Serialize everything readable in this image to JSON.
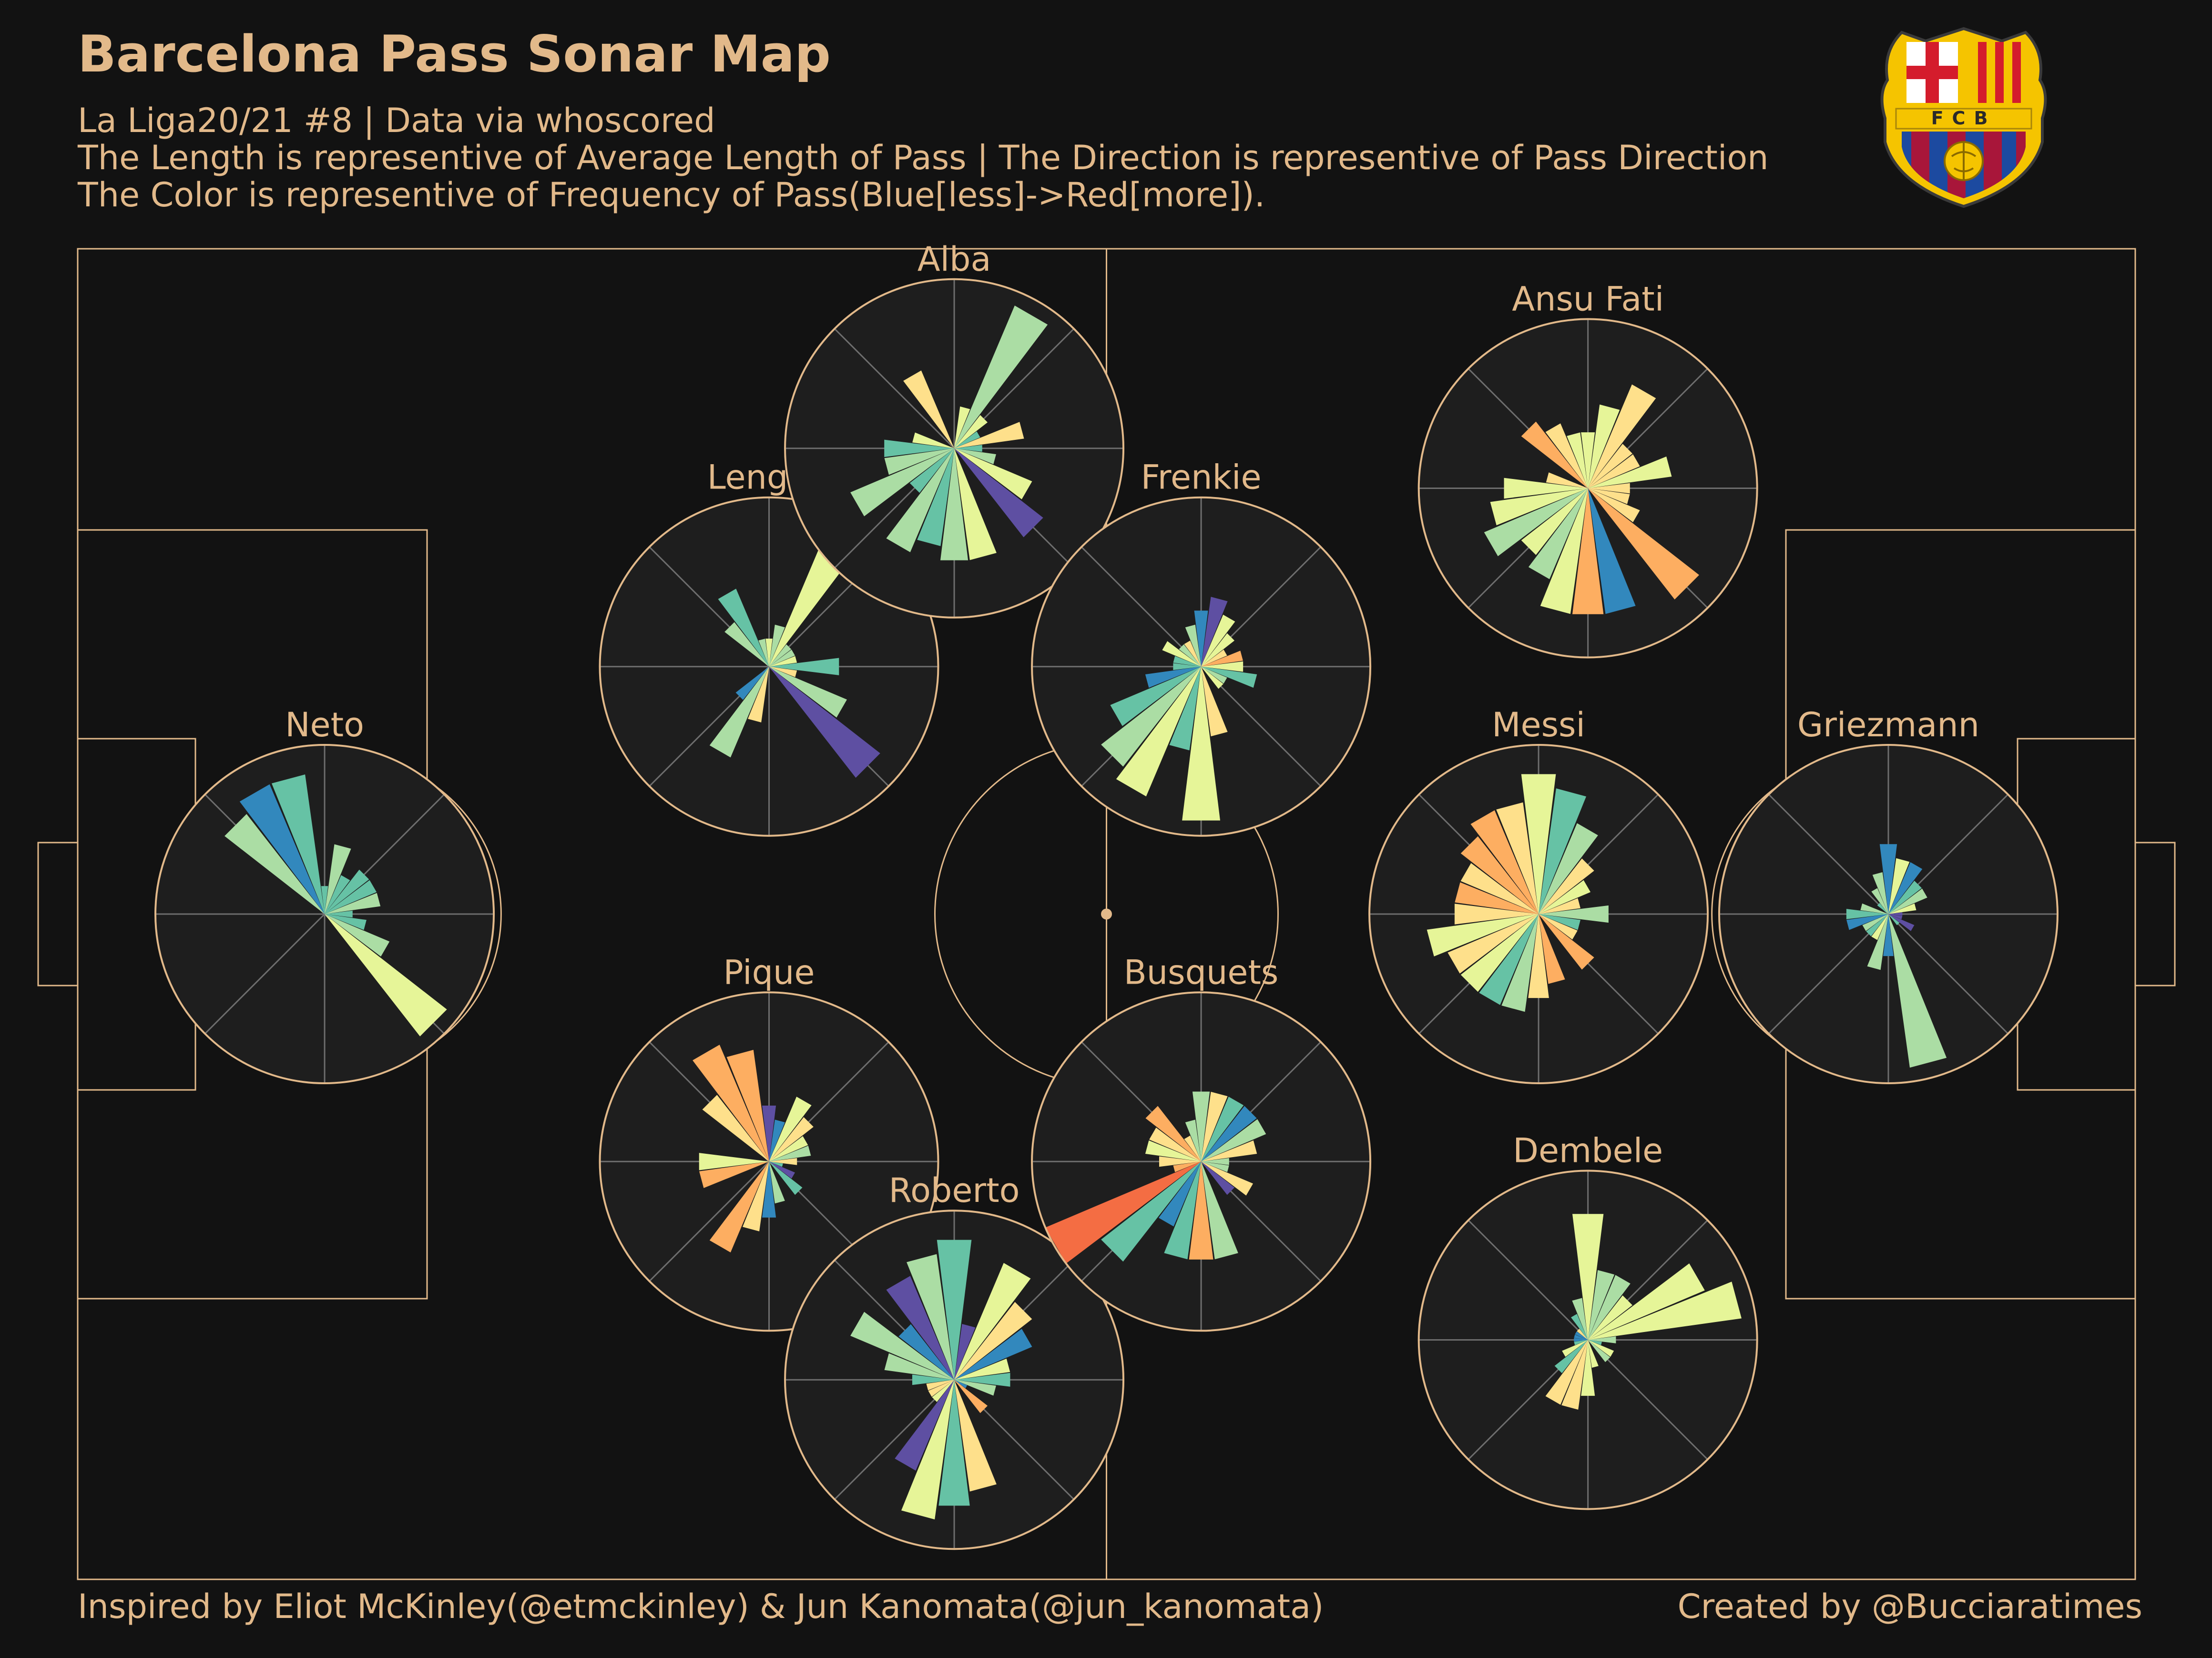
{
  "header": {
    "title": "Barcelona Pass Sonar Map",
    "subtitle_line1": "La Liga20/21 #8 | Data via whoscored",
    "subtitle_line2": "The Length is representive of Average Length of Pass | The Direction is representive of Pass Direction",
    "subtitle_line3": "The Color is representive of Frequency of Pass(Blue[less]->Red[more])."
  },
  "footer": {
    "left": "Inspired by Eliot McKinley(@etmckinley) & Jun Kanomata(@jun_kanomata)",
    "right": "Created by @Bucciaratimes"
  },
  "logo": {
    "text": "FCB"
  },
  "colors": {
    "background": "#121212",
    "pitch_line": "#e2b98a",
    "sonar_face": "#1e1e1e",
    "sonar_grid": "#6e6e6e",
    "text": "#e2b98a"
  },
  "chart_data": {
    "type": "polar-bar",
    "sector_count": 24,
    "color_scale": "Spectral_r (Blue = less frequent, Red = more frequent)",
    "players": [
      {
        "name": "Neto",
        "x": 12.0,
        "y": 50.0,
        "length": [
          2,
          5,
          3,
          4,
          4,
          4,
          2,
          3,
          5,
          11,
          0,
          0,
          0,
          0,
          0,
          0,
          0,
          0,
          0,
          0,
          0,
          9,
          10,
          10
        ],
        "freq": [
          2,
          3,
          2,
          2,
          2,
          3,
          2,
          2,
          3,
          4,
          0,
          0,
          0,
          0,
          0,
          0,
          0,
          0,
          0,
          0,
          0,
          3,
          1,
          2
        ]
      },
      {
        "name": "Lenglet",
        "x": 33.6,
        "y": 31.4,
        "length": [
          2,
          3,
          10,
          2,
          2,
          2,
          5,
          2,
          6,
          10,
          0,
          0,
          0,
          4,
          7,
          3,
          0,
          0,
          0,
          0,
          0,
          4,
          6,
          2
        ],
        "freq": [
          4,
          3,
          4,
          3,
          3,
          4,
          2,
          5,
          3,
          0,
          0,
          0,
          0,
          5,
          3,
          1,
          0,
          0,
          0,
          0,
          0,
          3,
          2,
          3
        ]
      },
      {
        "name": "Alba",
        "x": 42.6,
        "y": 15.0,
        "length": [
          0,
          3,
          11,
          3,
          2,
          5,
          2,
          3,
          6,
          8,
          0,
          8,
          8,
          7,
          8,
          4,
          8,
          5,
          5,
          3,
          0,
          0,
          6,
          0
        ],
        "freq": [
          0,
          4,
          3,
          4,
          2,
          5,
          2,
          3,
          4,
          0,
          0,
          4,
          3,
          2,
          3,
          2,
          3,
          3,
          2,
          4,
          0,
          0,
          5,
          0
        ]
      },
      {
        "name": "Pique",
        "x": 33.6,
        "y": 68.6,
        "length": [
          4,
          3,
          5,
          4,
          3,
          3,
          2,
          1,
          2,
          3,
          0,
          3,
          4,
          5,
          7,
          0,
          0,
          5,
          5,
          0,
          0,
          6,
          9,
          8
        ],
        "freq": [
          0,
          1,
          4,
          5,
          4,
          3,
          5,
          2,
          0,
          2,
          0,
          3,
          1,
          5,
          6,
          0,
          0,
          6,
          4,
          0,
          0,
          5,
          6,
          6
        ]
      },
      {
        "name": "Roberto",
        "x": 42.6,
        "y": 85.0,
        "length": [
          10,
          4,
          9,
          7,
          6,
          4,
          4,
          3,
          1,
          3,
          0,
          8,
          9,
          10,
          7,
          2,
          2,
          2,
          3,
          5,
          8,
          5,
          8,
          9
        ],
        "freq": [
          2,
          0,
          4,
          5,
          1,
          4,
          2,
          3,
          1,
          6,
          0,
          5,
          2,
          4,
          0,
          4,
          5,
          5,
          2,
          3,
          3,
          1,
          0,
          3
        ]
      },
      {
        "name": "Frenkie",
        "x": 54.6,
        "y": 31.4,
        "length": [
          4,
          5,
          4,
          3,
          2,
          3,
          3,
          4,
          2,
          2,
          0,
          5,
          11,
          6,
          10,
          9,
          7,
          4,
          2,
          2,
          3,
          2,
          2,
          3
        ],
        "freq": [
          1,
          0,
          4,
          4,
          5,
          6,
          4,
          2,
          3,
          4,
          0,
          5,
          4,
          2,
          4,
          3,
          2,
          1,
          2,
          2,
          4,
          3,
          5,
          3
        ]
      },
      {
        "name": "Busquets",
        "x": 54.6,
        "y": 68.6,
        "length": [
          5,
          5,
          5,
          5,
          5,
          4,
          2,
          2,
          4,
          3,
          0,
          7,
          7,
          7,
          5,
          9,
          12,
          2,
          3,
          4,
          4,
          5,
          2,
          3
        ],
        "freq": [
          3,
          5,
          2,
          1,
          3,
          5,
          3,
          3,
          5,
          0,
          0,
          3,
          6,
          2,
          1,
          2,
          7,
          6,
          5,
          4,
          5,
          6,
          5,
          3
        ]
      },
      {
        "name": "Ansu Fati",
        "x": 73.4,
        "y": 18.0,
        "length": [
          4,
          6,
          8,
          4,
          4,
          6,
          3,
          3,
          4,
          10,
          0,
          9,
          9,
          9,
          7,
          6,
          8,
          7,
          6,
          3,
          0,
          6,
          5,
          4
        ],
        "freq": [
          4,
          4,
          5,
          5,
          5,
          4,
          5,
          5,
          5,
          6,
          0,
          1,
          6,
          4,
          3,
          4,
          3,
          4,
          4,
          5,
          0,
          6,
          5,
          4
        ]
      },
      {
        "name": "Messi",
        "x": 71.0,
        "y": 50.0,
        "length": [
          10,
          9,
          7,
          5,
          4,
          3,
          5,
          3,
          3,
          5,
          0,
          5,
          6,
          7,
          7,
          7,
          7,
          8,
          6,
          6,
          6,
          7,
          8,
          8
        ],
        "freq": [
          4,
          2,
          3,
          5,
          4,
          5,
          3,
          2,
          5,
          6,
          0,
          6,
          5,
          3,
          2,
          4,
          5,
          4,
          5,
          6,
          5,
          6,
          6,
          5
        ]
      },
      {
        "name": "Griezmann",
        "x": 88.0,
        "y": 50.0,
        "length": [
          5,
          4,
          4,
          3,
          3,
          2,
          1,
          1,
          2,
          1,
          0,
          11,
          3,
          4,
          2,
          2,
          2,
          3,
          3,
          2,
          0,
          1,
          2,
          3
        ],
        "freq": [
          1,
          4,
          1,
          2,
          3,
          4,
          0,
          0,
          0,
          2,
          0,
          3,
          1,
          3,
          4,
          2,
          3,
          1,
          2,
          3,
          0,
          2,
          3,
          3
        ]
      },
      {
        "name": "Dembele",
        "x": 73.4,
        "y": 82.0,
        "length": [
          9,
          5,
          5,
          4,
          9,
          11,
          2,
          1,
          2,
          2,
          0,
          2,
          4,
          5,
          5,
          3,
          2,
          1,
          1,
          1,
          1,
          1,
          2,
          3
        ],
        "freq": [
          4,
          3,
          3,
          4,
          4,
          4,
          3,
          2,
          4,
          3,
          0,
          4,
          4,
          5,
          5,
          2,
          4,
          2,
          1,
          1,
          1,
          5,
          2,
          3
        ]
      }
    ]
  }
}
